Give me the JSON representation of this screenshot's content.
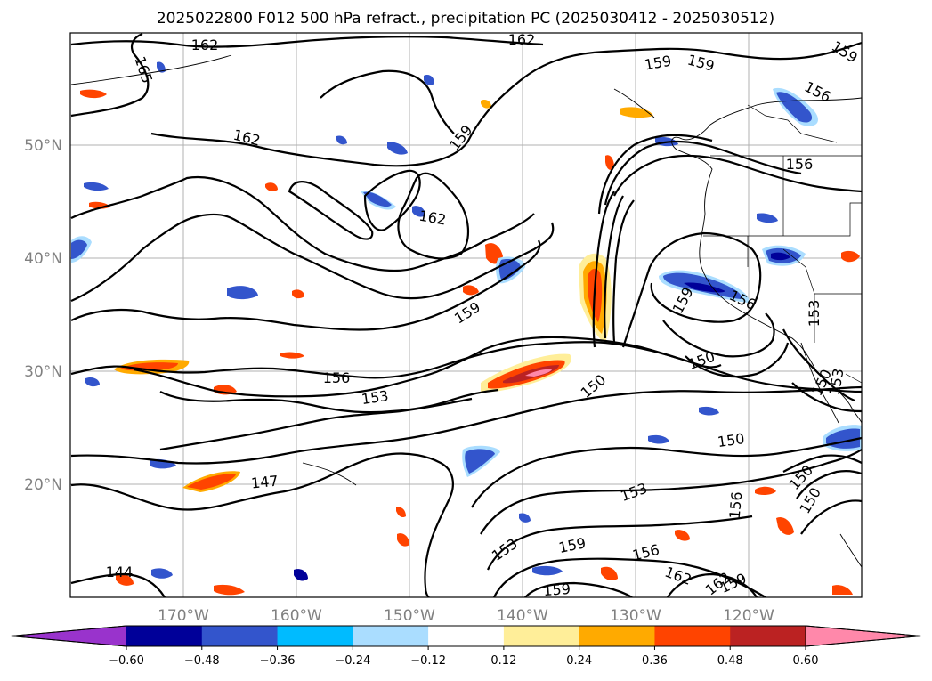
{
  "title": "2025022800 F012 500 hPa refract., precipitation PC (2025030412 - 2025030512)",
  "latitude_labels": [
    "50°N",
    "40°N",
    "30°N",
    "20°N"
  ],
  "longitude_labels": [
    "170°W",
    "160°W",
    "150°W",
    "140°W",
    "130°W",
    "120°W"
  ],
  "colorbar": {
    "tick_labels": [
      "−0.60",
      "−0.48",
      "−0.36",
      "−0.24",
      "−0.12",
      "0.12",
      "0.24",
      "0.36",
      "0.48",
      "0.60"
    ],
    "colors": [
      "#9933cc",
      "#000099",
      "#3355cc",
      "#00bbff",
      "#aaddff",
      "#ffffff",
      "#ffee99",
      "#ffaa00",
      "#ff4400",
      "#bb2222",
      "#ff88aa"
    ]
  },
  "map_data": {
    "extent": {
      "lon": [
        -180,
        -110
      ],
      "lat": [
        10,
        60
      ]
    },
    "contour_variable": "500 hPa refractivity",
    "contour_labels": [
      "162",
      "165",
      "162",
      "159",
      "159",
      "159",
      "156",
      "162",
      "159",
      "162",
      "156",
      "153",
      "159",
      "156",
      "150",
      "150",
      "153",
      "156",
      "150",
      "147",
      "150",
      "150",
      "153",
      "156",
      "153",
      "159",
      "156",
      "162",
      "162",
      "159",
      "159",
      "144",
      "150",
      "153",
      "159"
    ],
    "shading_variable": "precipitation PC"
  }
}
